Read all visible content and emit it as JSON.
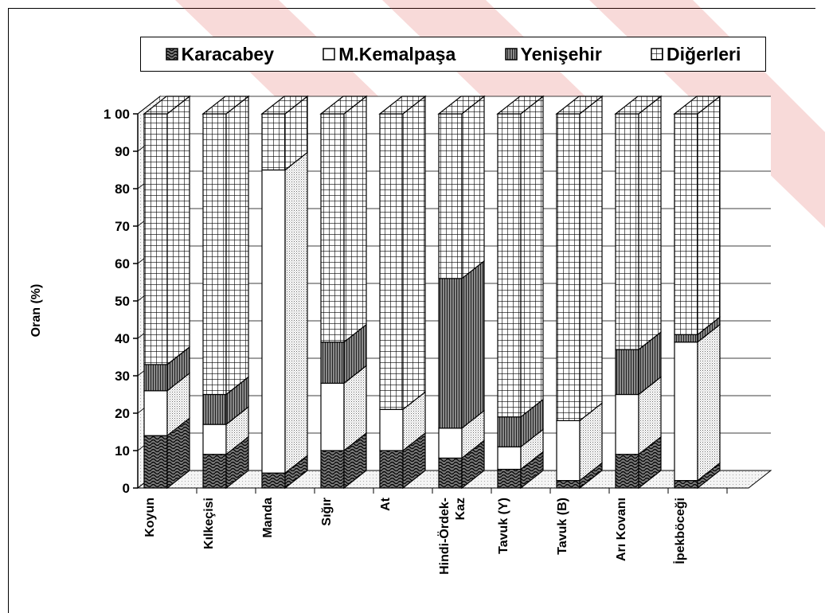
{
  "chart_data": {
    "type": "bar",
    "stacked": true,
    "three_d": true,
    "title": "",
    "xlabel": "",
    "ylabel": "Oran (%)",
    "ylim": [
      0,
      100
    ],
    "yticks": [
      "0",
      "10",
      "20",
      "30",
      "40",
      "50",
      "60",
      "70",
      "80",
      "90",
      "1 00"
    ],
    "grid": true,
    "legend_position": "top",
    "categories": [
      "Koyun",
      "Kılkeçisi",
      "Manda",
      "Sığır",
      "At",
      "Hindi-Ördek-Kaz",
      "Tavuk (Y)",
      "Tavuk (B)",
      "Arı Kovanı",
      "İpekböceği"
    ],
    "category_lines": [
      [
        "Koyun"
      ],
      [
        "Kılkeçisi"
      ],
      [
        "Manda"
      ],
      [
        "Sığır"
      ],
      [
        "At"
      ],
      [
        "Hindi-Ördek-",
        "Kaz"
      ],
      [
        "Tavuk (Y)"
      ],
      [
        "Tavuk (B)"
      ],
      [
        "Arı Kovanı"
      ],
      [
        "İpekböceği"
      ]
    ],
    "series": [
      {
        "name": "Karacabey",
        "pattern": "wave",
        "values": [
          14,
          9,
          4,
          10,
          10,
          8,
          5,
          2,
          9,
          2
        ]
      },
      {
        "name": "M.Kemalpaşa",
        "pattern": "white",
        "values": [
          12,
          8,
          81,
          18,
          11,
          8,
          6,
          16,
          16,
          37
        ]
      },
      {
        "name": "Yenişehir",
        "pattern": "vstripe",
        "values": [
          7,
          8,
          0,
          11,
          0,
          40,
          8,
          0,
          12,
          2
        ]
      },
      {
        "name": "Diğerleri",
        "pattern": "grid",
        "values": [
          67,
          75,
          15,
          61,
          79,
          44,
          81,
          82,
          63,
          59
        ]
      }
    ]
  },
  "colors": {
    "watermark": "#d9342b",
    "ink": "#000000",
    "background": "#ffffff"
  }
}
